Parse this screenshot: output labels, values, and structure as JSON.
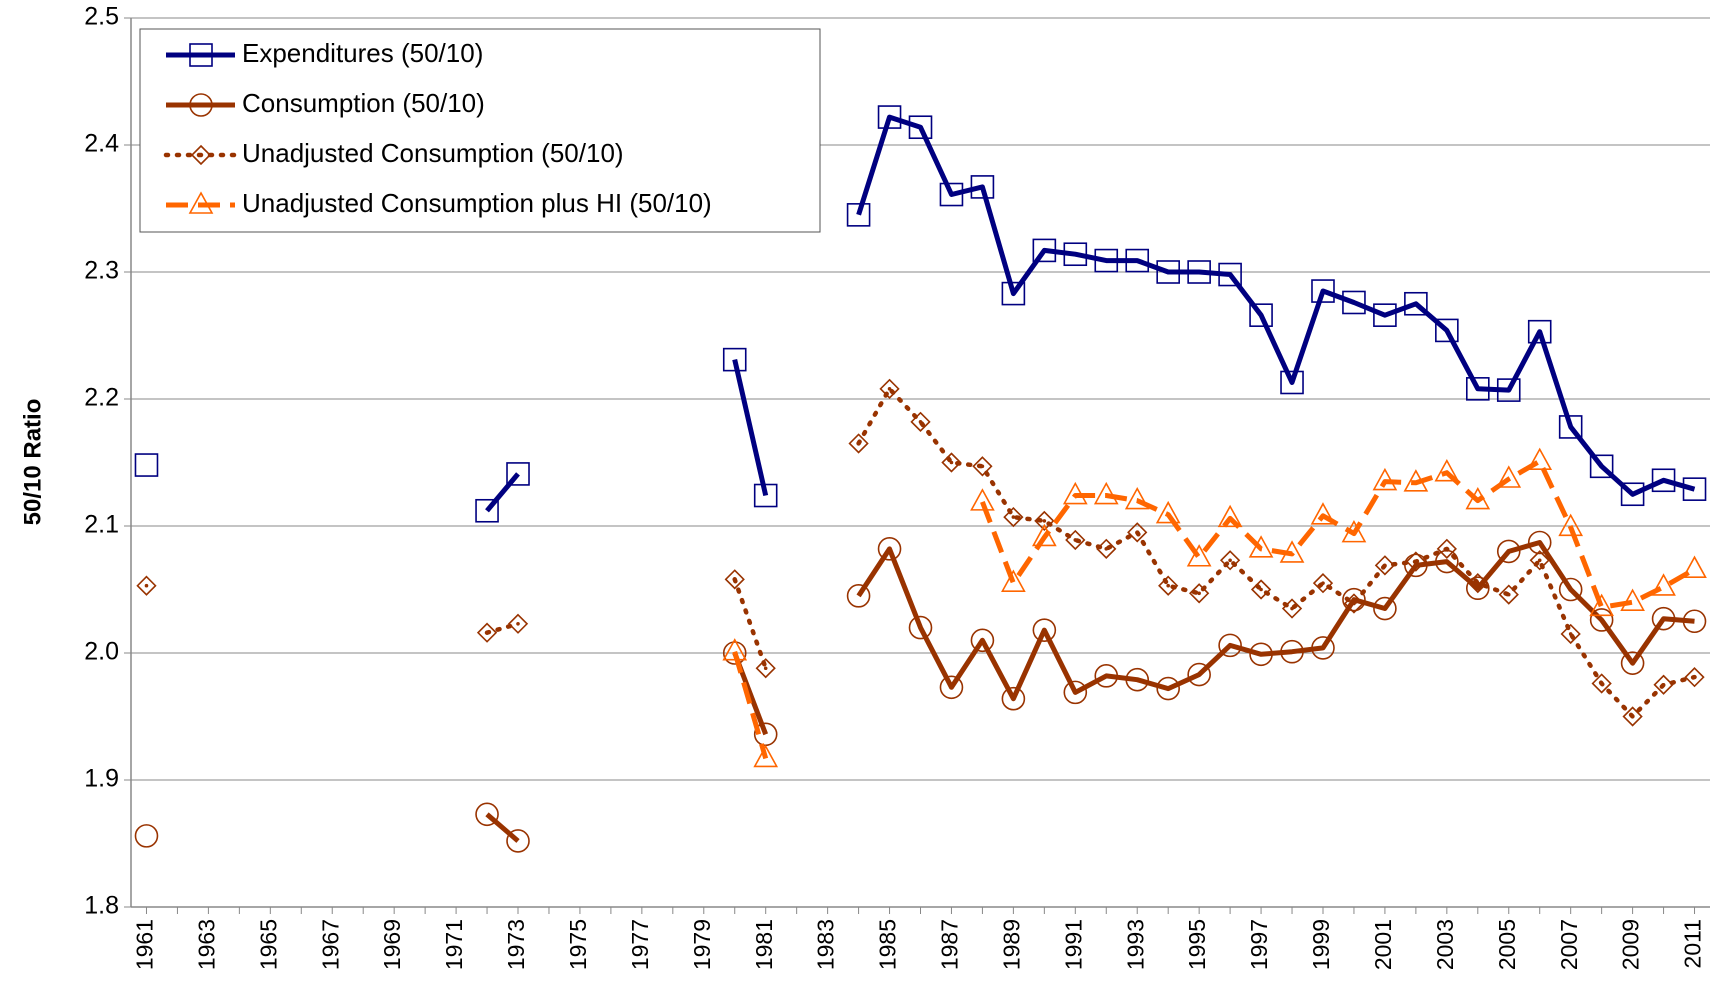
{
  "chart_data": {
    "type": "line",
    "y_label": "50/10 Ratio",
    "x": [
      1961,
      1962,
      1963,
      1964,
      1965,
      1966,
      1967,
      1968,
      1969,
      1970,
      1971,
      1972,
      1973,
      1974,
      1975,
      1976,
      1977,
      1978,
      1979,
      1980,
      1981,
      1982,
      1983,
      1984,
      1985,
      1986,
      1987,
      1988,
      1989,
      1990,
      1991,
      1992,
      1993,
      1994,
      1995,
      1996,
      1997,
      1998,
      1999,
      2000,
      2001,
      2002,
      2003,
      2004,
      2005,
      2006,
      2007,
      2008,
      2009,
      2010,
      2011
    ],
    "xlim": [
      1960.5,
      2011.5
    ],
    "xticks": [
      1961,
      1963,
      1965,
      1967,
      1969,
      1971,
      1973,
      1975,
      1977,
      1979,
      1981,
      1983,
      1985,
      1987,
      1989,
      1991,
      1993,
      1995,
      1997,
      1999,
      2001,
      2003,
      2005,
      2007,
      2009,
      2011
    ],
    "ylim": [
      1.8,
      2.5
    ],
    "yticks": [
      {
        "value": 1.8,
        "label": "1.8"
      },
      {
        "value": 1.9,
        "label": "1.9"
      },
      {
        "value": 2.0,
        "label": "2.0"
      },
      2.1,
      2.2,
      2.3,
      2.4,
      2.5
    ],
    "grid": true,
    "legend": "top-left",
    "series": [
      {
        "name": "Expenditures (50/10)",
        "color": "#000080",
        "marker": "square",
        "dash": "solid",
        "values": [
          2.148,
          null,
          null,
          null,
          null,
          null,
          null,
          null,
          null,
          null,
          null,
          2.112,
          2.141,
          null,
          null,
          null,
          null,
          null,
          null,
          2.231,
          2.124,
          null,
          null,
          2.345,
          2.422,
          2.414,
          2.361,
          2.367,
          2.283,
          2.317,
          2.314,
          2.309,
          2.309,
          2.3,
          2.3,
          2.298,
          2.266,
          2.213,
          2.285,
          2.276,
          2.266,
          2.275,
          2.254,
          2.208,
          2.207,
          2.253,
          2.178,
          2.147,
          2.125,
          2.136,
          2.129
        ]
      },
      {
        "name": "Consumption (50/10)",
        "color": "#993300",
        "marker": "circle",
        "dash": "solid",
        "values": [
          1.856,
          null,
          null,
          null,
          null,
          null,
          null,
          null,
          null,
          null,
          null,
          1.873,
          1.852,
          null,
          null,
          null,
          null,
          null,
          null,
          2.0,
          1.936,
          null,
          null,
          2.045,
          2.082,
          2.02,
          1.973,
          2.01,
          1.964,
          2.018,
          1.969,
          1.982,
          1.979,
          1.972,
          1.983,
          2.006,
          1.999,
          2.001,
          2.004,
          2.042,
          2.035,
          2.069,
          2.072,
          2.051,
          2.08,
          2.087,
          2.05,
          2.026,
          1.992,
          2.027,
          2.025
        ]
      },
      {
        "name": "Unadjusted Consumption (50/10)",
        "color": "#993300",
        "marker": "diamond",
        "dash": "dotted",
        "values": [
          2.053,
          null,
          null,
          null,
          null,
          null,
          null,
          null,
          null,
          null,
          null,
          2.016,
          2.023,
          null,
          null,
          null,
          null,
          null,
          null,
          2.058,
          1.988,
          null,
          null,
          2.165,
          2.208,
          2.182,
          2.15,
          2.147,
          2.107,
          2.104,
          2.089,
          2.082,
          2.095,
          2.053,
          2.047,
          2.073,
          2.05,
          2.035,
          2.055,
          2.039,
          2.069,
          2.072,
          2.082,
          2.055,
          2.046,
          2.073,
          2.015,
          1.976,
          1.95,
          1.975,
          1.981
        ]
      },
      {
        "name": "Unadjusted Consumption plus HI (50/10)",
        "color": "#FF6600",
        "marker": "triangle",
        "dash": "dashed",
        "values": [
          null,
          null,
          null,
          null,
          null,
          null,
          null,
          null,
          null,
          null,
          null,
          null,
          null,
          null,
          null,
          null,
          null,
          null,
          null,
          2.001,
          1.917,
          null,
          null,
          null,
          null,
          null,
          null,
          2.119,
          2.055,
          2.091,
          2.124,
          2.124,
          2.12,
          2.109,
          2.075,
          2.106,
          2.082,
          2.078,
          2.108,
          2.094,
          2.135,
          2.134,
          2.142,
          2.12,
          2.137,
          2.151,
          2.099,
          2.036,
          2.04,
          2.052,
          2.066
        ]
      }
    ]
  }
}
